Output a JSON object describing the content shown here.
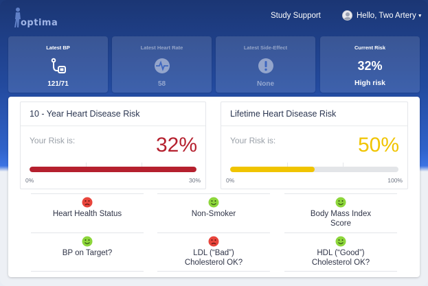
{
  "header": {
    "logo_text": "optima",
    "study_support": "Study Support",
    "user_greeting": "Hello, Two Artery"
  },
  "tiles": [
    {
      "label": "Latest BP",
      "value": "121/71",
      "icon": "bp-monitor-icon",
      "enabled": true
    },
    {
      "label": "Latest Heart Rate",
      "value": "58",
      "icon": "heart-rate-icon",
      "enabled": false
    },
    {
      "label": "Latest Side-Effect",
      "value": "None",
      "icon": "alert-icon",
      "enabled": false
    },
    {
      "label": "Current Risk",
      "value": "32%",
      "sub": "High risk",
      "enabled": true
    }
  ],
  "risk_cards": [
    {
      "title": "10 - Year Heart Disease Risk",
      "label": "Your Risk is:",
      "value": "32%",
      "fill_percent": 100,
      "color": "#b5202e",
      "axis_min": "0%",
      "axis_max": "30%"
    },
    {
      "title": "Lifetime Heart Disease Risk",
      "label": "Your Risk is:",
      "value": "50%",
      "fill_percent": 50,
      "color": "#f0c400",
      "axis_min": "0%",
      "axis_max": "100%"
    }
  ],
  "statuses": [
    {
      "label": "Heart Health Status",
      "mood": "sad"
    },
    {
      "label": "Non-Smoker",
      "mood": "happy"
    },
    {
      "label": "Body Mass Index Score",
      "mood": "happy"
    },
    {
      "label": "BP on Target?",
      "mood": "happy"
    },
    {
      "label": "LDL (“Bad”) Cholesterol OK?",
      "mood": "sad"
    },
    {
      "label": "HDL (“Good”) Cholesterol OK?",
      "mood": "happy"
    }
  ],
  "colors": {
    "happy": "#8dd63b",
    "sad": "#e8453c",
    "header": "#234a9e"
  }
}
